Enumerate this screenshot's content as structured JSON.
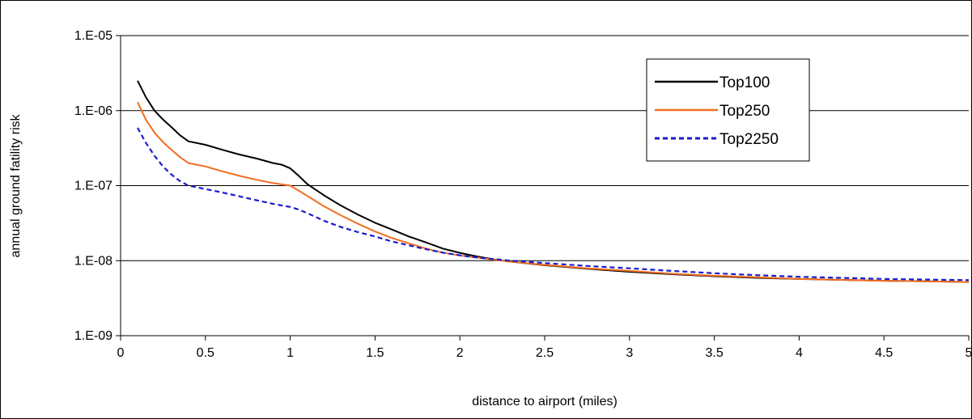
{
  "chart_data": {
    "type": "line",
    "title": "",
    "xlabel": "distance to airport (miles)",
    "ylabel": "annual ground fatility risk",
    "xlim": [
      0,
      5
    ],
    "ylim": [
      1e-09,
      1e-05
    ],
    "y_scale": "log",
    "grid": "horizontal",
    "legend_position": "top-right",
    "x_ticks": [
      "0",
      "0.5",
      "1",
      "1.5",
      "2",
      "2.5",
      "3",
      "3.5",
      "4",
      "4.5",
      "5"
    ],
    "y_ticks": [
      "1.E-09",
      "1.E-08",
      "1.E-07",
      "1.E-06",
      "1.E-05"
    ],
    "series": [
      {
        "name": "Top100",
        "color": "#000000",
        "dash": "solid",
        "x": [
          0.1,
          0.15,
          0.2,
          0.25,
          0.3,
          0.35,
          0.4,
          0.5,
          0.6,
          0.7,
          0.8,
          0.9,
          0.95,
          1.0,
          1.05,
          1.1,
          1.2,
          1.3,
          1.4,
          1.5,
          1.6,
          1.7,
          1.8,
          1.9,
          2.0,
          2.1,
          2.2,
          2.3,
          2.5,
          2.75,
          3.0,
          3.25,
          3.5,
          3.75,
          4.0,
          4.25,
          4.5,
          4.75,
          5.0
        ],
        "y": [
          2.5e-06,
          1.5e-06,
          1e-06,
          7.6e-07,
          6e-07,
          4.7e-07,
          3.9e-07,
          3.5e-07,
          3e-07,
          2.6e-07,
          2.3e-07,
          2e-07,
          1.9e-07,
          1.7e-07,
          1.35e-07,
          1.05e-07,
          7.4e-08,
          5.4e-08,
          4.1e-08,
          3.2e-08,
          2.6e-08,
          2.1e-08,
          1.75e-08,
          1.45e-08,
          1.27e-08,
          1.14e-08,
          1.04e-08,
          9.7e-09,
          8.7e-09,
          7.8e-09,
          7.1e-09,
          6.6e-09,
          6.2e-09,
          5.9e-09,
          5.7e-09,
          5.55e-09,
          5.4e-09,
          5.3e-09,
          5.2e-09
        ]
      },
      {
        "name": "Top250",
        "color": "#f26d1e",
        "dash": "solid",
        "x": [
          0.1,
          0.15,
          0.2,
          0.25,
          0.3,
          0.35,
          0.4,
          0.5,
          0.6,
          0.7,
          0.8,
          0.9,
          1.0,
          1.05,
          1.1,
          1.2,
          1.3,
          1.4,
          1.5,
          1.6,
          1.7,
          1.8,
          1.9,
          2.0,
          2.1,
          2.2,
          2.3,
          2.5,
          2.75,
          3.0,
          3.25,
          3.5,
          3.75,
          4.0,
          4.25,
          4.5,
          4.75,
          5.0
        ],
        "y": [
          1.3e-06,
          7.5e-07,
          5.1e-07,
          3.8e-07,
          3e-07,
          2.4e-07,
          2e-07,
          1.8e-07,
          1.55e-07,
          1.35e-07,
          1.2e-07,
          1.08e-07,
          1e-07,
          8.6e-08,
          7.3e-08,
          5.3e-08,
          4e-08,
          3.1e-08,
          2.45e-08,
          2e-08,
          1.7e-08,
          1.45e-08,
          1.28e-08,
          1.17e-08,
          1.1e-08,
          1.03e-08,
          9.7e-09,
          8.8e-09,
          7.9e-09,
          7.3e-09,
          6.7e-09,
          6.3e-09,
          6e-09,
          5.7e-09,
          5.55e-09,
          5.4e-09,
          5.3e-09,
          5.2e-09
        ]
      },
      {
        "name": "Top2250",
        "color": "#1c1ccf",
        "dash": "dashed",
        "x": [
          0.1,
          0.15,
          0.2,
          0.25,
          0.3,
          0.35,
          0.4,
          0.5,
          0.6,
          0.7,
          0.8,
          0.9,
          1.0,
          1.05,
          1.1,
          1.2,
          1.3,
          1.4,
          1.5,
          1.6,
          1.7,
          1.8,
          1.9,
          2.0,
          2.1,
          2.2,
          2.3,
          2.5,
          2.75,
          3.0,
          3.25,
          3.5,
          3.75,
          4.0,
          4.25,
          4.5,
          4.75,
          5.0
        ],
        "y": [
          5.9e-07,
          3.7e-07,
          2.5e-07,
          1.8e-07,
          1.4e-07,
          1.15e-07,
          1e-07,
          9e-08,
          8.1e-08,
          7.2e-08,
          6.4e-08,
          5.7e-08,
          5.2e-08,
          4.8e-08,
          4.3e-08,
          3.4e-08,
          2.8e-08,
          2.4e-08,
          2.1e-08,
          1.8e-08,
          1.6e-08,
          1.42e-08,
          1.28e-08,
          1.18e-08,
          1.1e-08,
          1.05e-08,
          1e-08,
          9.3e-09,
          8.5e-09,
          7.9e-09,
          7.3e-09,
          6.8e-09,
          6.4e-09,
          6.1e-09,
          5.9e-09,
          5.7e-09,
          5.6e-09,
          5.5e-09
        ]
      }
    ]
  }
}
